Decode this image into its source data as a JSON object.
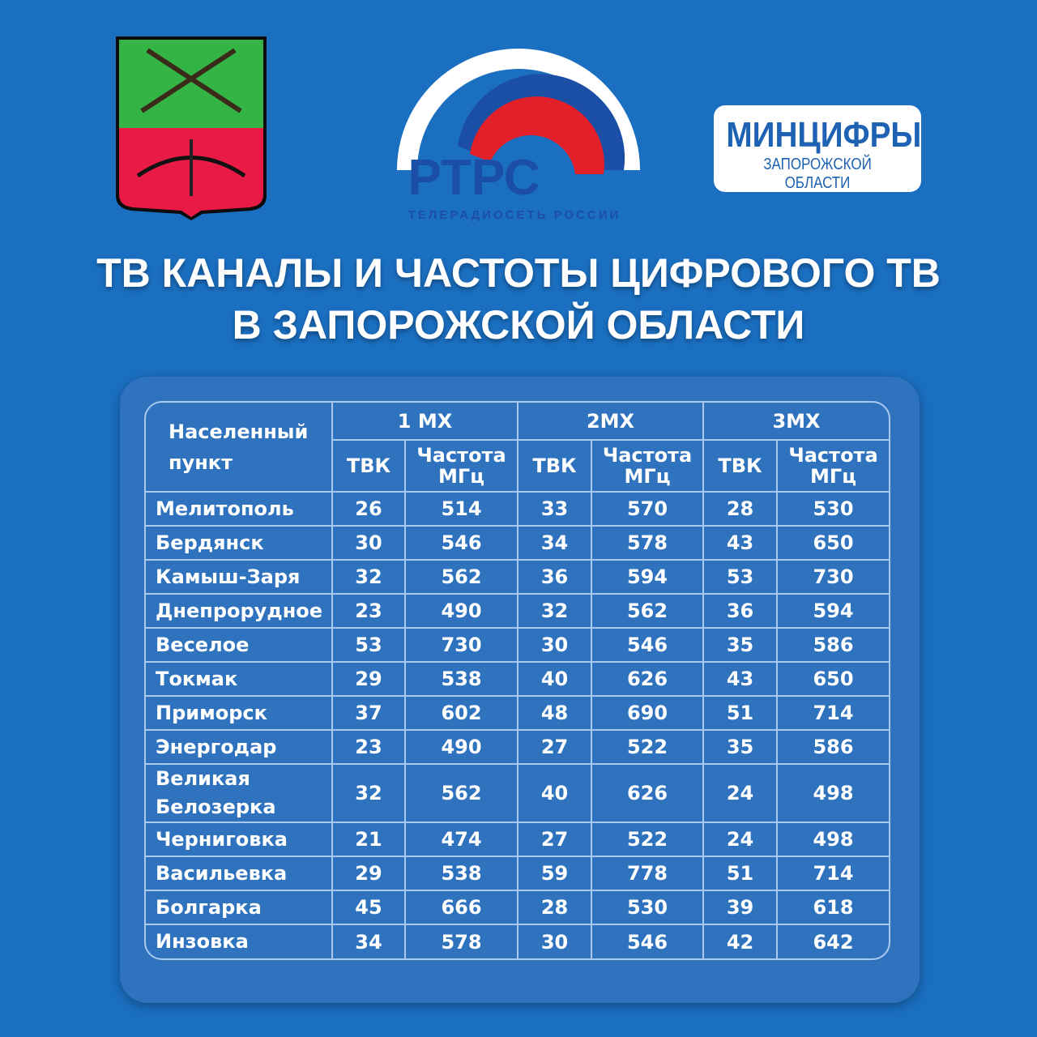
{
  "logos": {
    "rtrs": {
      "name": "РТРС",
      "caption": "ТЕЛЕРАДИОСЕТЬ РОССИИ"
    },
    "mincifry": {
      "name": "МИНЦИФРЫ",
      "caption": "ЗАПОРОЖСКОЙ ОБЛАСТИ"
    }
  },
  "header": {
    "title_lines": [
      "ТВ КАНАЛЫ И ЧАСТОТЫ ЦИФРОВОГО ТВ",
      "В ЗАПОРОЖСКОЙ ОБЛАСТИ"
    ]
  },
  "table": {
    "corner": "Населенный пункт",
    "groups": [
      "1 МХ",
      "2МХ",
      "3МХ"
    ],
    "subheaders": [
      [
        "ТВК",
        "Частота МГц"
      ],
      [
        "ТВК",
        "Частота МГц"
      ],
      [
        "ТВК",
        "Частота МГц"
      ]
    ],
    "rows": [
      [
        "Мелитополь",
        26,
        514,
        33,
        570,
        28,
        530
      ],
      [
        "Бердянск",
        30,
        546,
        34,
        578,
        43,
        650
      ],
      [
        "Камыш-Заря",
        32,
        562,
        36,
        594,
        53,
        730
      ],
      [
        "Днепрорудное",
        23,
        490,
        32,
        562,
        36,
        594
      ],
      [
        "Веселое",
        53,
        730,
        30,
        546,
        35,
        586
      ],
      [
        "Токмак",
        29,
        538,
        40,
        626,
        43,
        650
      ],
      [
        "Приморск",
        37,
        602,
        48,
        690,
        51,
        714
      ],
      [
        "Энергодар",
        23,
        490,
        27,
        522,
        35,
        586
      ],
      [
        "Великая Белозерка",
        32,
        562,
        40,
        626,
        24,
        498
      ],
      [
        "Черниговка",
        21,
        474,
        27,
        522,
        24,
        498
      ],
      [
        "Васильевка",
        29,
        538,
        59,
        778,
        51,
        714
      ],
      [
        "Болгарка",
        45,
        666,
        28,
        530,
        39,
        618
      ],
      [
        "Инзовка",
        34,
        578,
        30,
        546,
        42,
        642
      ]
    ]
  }
}
